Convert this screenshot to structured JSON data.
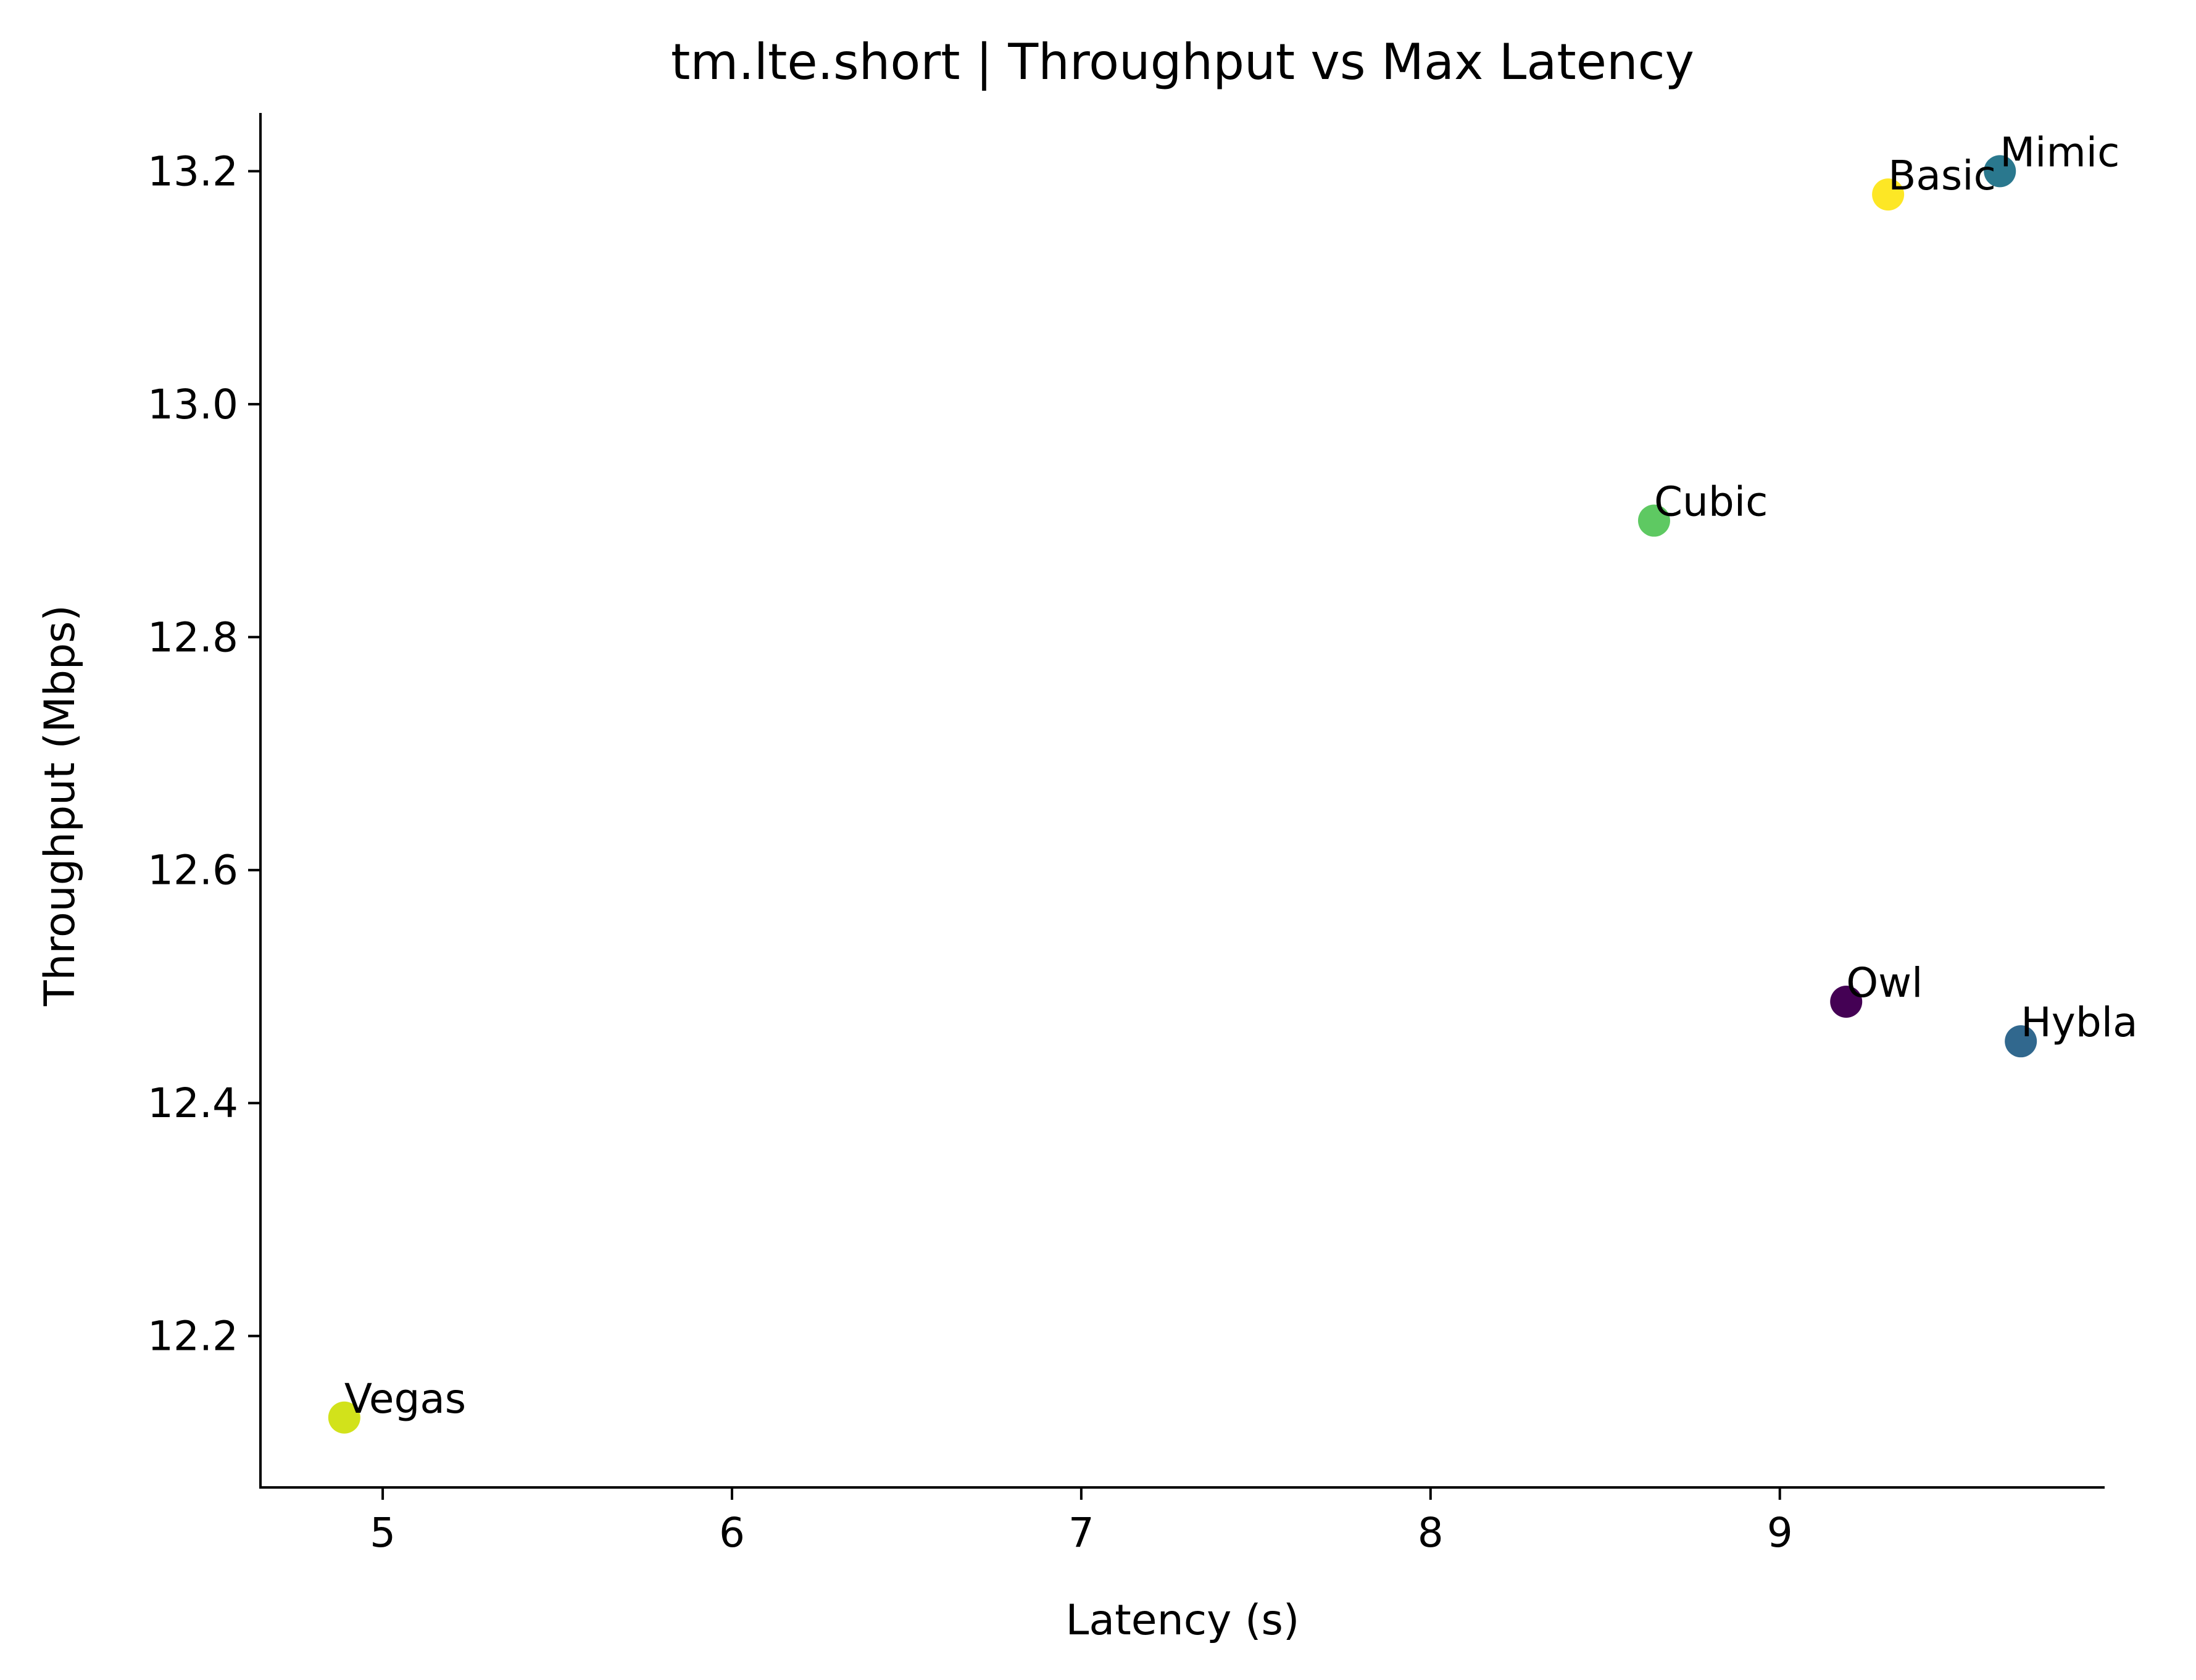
{
  "chart_data": {
    "type": "scatter",
    "title": "tm.lte.short | Throughput vs Max Latency",
    "xlabel": "Latency (s)",
    "ylabel": "Throughput (Mbps)",
    "xlim": [
      4.65,
      9.93
    ],
    "ylim": [
      12.07,
      13.25
    ],
    "xticks": [
      5,
      6,
      7,
      8,
      9
    ],
    "xtick_labels": [
      "5",
      "6",
      "7",
      "8",
      "9"
    ],
    "yticks": [
      12.2,
      12.4,
      12.6,
      12.8,
      13.0,
      13.2
    ],
    "ytick_labels": [
      "12.2",
      "12.4",
      "12.6",
      "12.8",
      "13.0",
      "13.2"
    ],
    "grid": false,
    "points": [
      {
        "label": "Mimic",
        "x": 9.63,
        "y": 13.2,
        "color": "#2a788e"
      },
      {
        "label": "Basic",
        "x": 9.31,
        "y": 13.18,
        "color": "#fde725"
      },
      {
        "label": "Cubic",
        "x": 8.64,
        "y": 12.9,
        "color": "#5ec962"
      },
      {
        "label": "Owl",
        "x": 9.19,
        "y": 12.487,
        "color": "#440154"
      },
      {
        "label": "Hybla",
        "x": 9.69,
        "y": 12.453,
        "color": "#31688e"
      },
      {
        "label": "Vegas",
        "x": 4.89,
        "y": 12.13,
        "color": "#d2e21b"
      }
    ]
  }
}
